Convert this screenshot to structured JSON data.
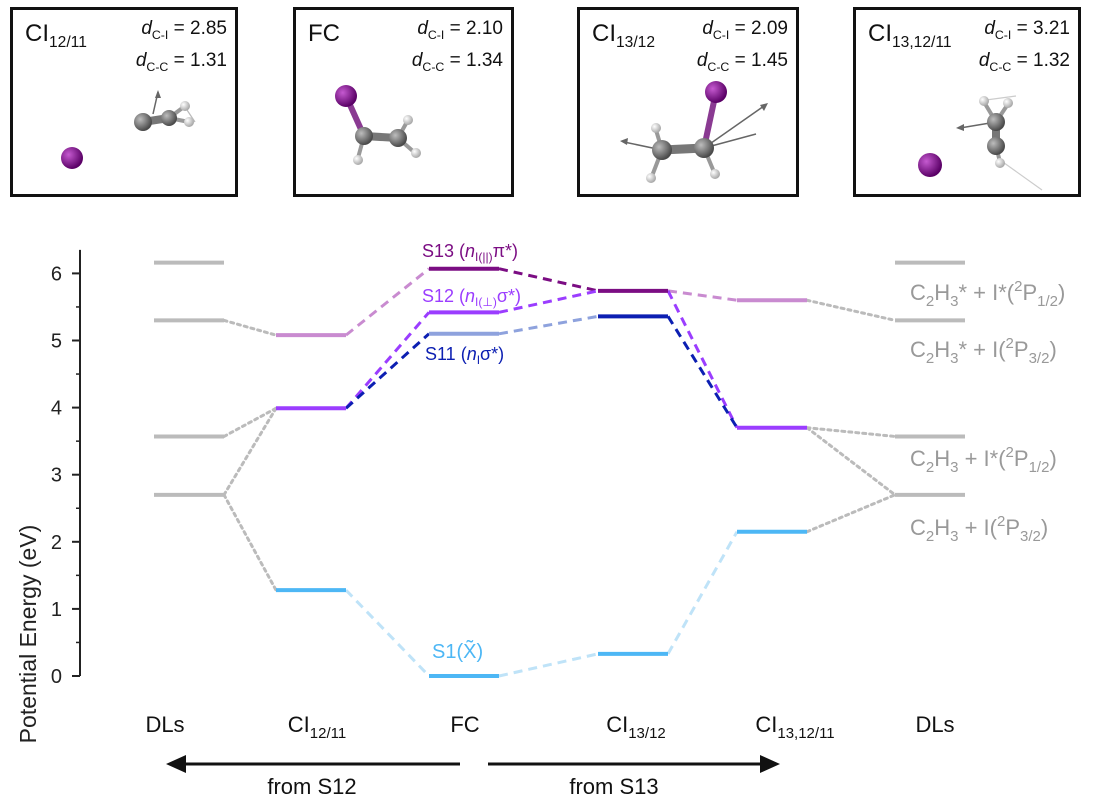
{
  "panels": [
    {
      "title": "CI",
      "sub": "12/11",
      "d_ci_label": "d",
      "d_ci_sub": "C-I",
      "d_ci": "= 2.85",
      "d_cc_label": "d",
      "d_cc_sub": "C-C",
      "d_cc": "= 1.31"
    },
    {
      "title": "FC",
      "sub": "",
      "d_ci_label": "d",
      "d_ci_sub": "C-I",
      "d_ci": "= 2.10",
      "d_cc_label": "d",
      "d_cc_sub": "C-C",
      "d_cc": "= 1.34"
    },
    {
      "title": "CI",
      "sub": "13/12",
      "d_ci_label": "d",
      "d_ci_sub": "C-I",
      "d_ci": "= 2.09",
      "d_cc_label": "d",
      "d_cc_sub": "C-C",
      "d_cc": "= 1.45"
    },
    {
      "title": "CI",
      "sub": "13,12/11",
      "d_ci_label": "d",
      "d_ci_sub": "C-I",
      "d_ci": "= 3.21",
      "d_cc_label": "d",
      "d_cc_sub": "C-C",
      "d_cc": "= 1.32"
    }
  ],
  "axis": {
    "ylabel": "Potential Energy (eV)",
    "ticks": [
      "0",
      "1",
      "2",
      "3",
      "4",
      "5",
      "6"
    ],
    "ylim": [
      0,
      6.4
    ]
  },
  "columns": [
    {
      "label": "DLs",
      "sub": ""
    },
    {
      "label": "CI",
      "sub": "12/11"
    },
    {
      "label": "FC",
      "sub": ""
    },
    {
      "label": "CI",
      "sub": "13/12"
    },
    {
      "label": "CI",
      "sub": "13,12/11"
    },
    {
      "label": "DLs",
      "sub": ""
    }
  ],
  "arrows": {
    "left_label": "from S12",
    "right_label": "from S13"
  },
  "state_labels": {
    "s13": {
      "name": "S13 (",
      "n": "n",
      "nsub": "I(||)",
      "rest": "π*)"
    },
    "s12": {
      "name": "S12 (",
      "n": "n",
      "nsub": "I(⊥)",
      "rest": "σ*)"
    },
    "s11": {
      "name": "S11 (",
      "n": "n",
      "nsub": "I",
      "rest": "σ*)"
    },
    "s1": {
      "name": "S1(",
      "x": "X̃",
      "rest": ")"
    }
  },
  "dissociation_labels": [
    {
      "pre": "C",
      "s1": "2",
      "mid": "H",
      "s2": "3",
      "mid2": "* + I*(",
      "sup": "2",
      "p": "P",
      "psub": "1/2",
      "end": ")"
    },
    {
      "pre": "C",
      "s1": "2",
      "mid": "H",
      "s2": "3",
      "mid2": "* + I(",
      "sup": "2",
      "p": "P",
      "psub": "3/2",
      "end": ")"
    },
    {
      "pre": "C",
      "s1": "2",
      "mid": "H",
      "s2": "3",
      "mid2": " + I*(",
      "sup": "2",
      "p": "P",
      "psub": "1/2",
      "end": ")"
    },
    {
      "pre": "C",
      "s1": "2",
      "mid": "H",
      "s2": "3",
      "mid2": " + I(",
      "sup": "2",
      "p": "P",
      "psub": "3/2",
      "end": ")"
    }
  ],
  "colors": {
    "s13": "#7b0d83",
    "s12": "#9b3dff",
    "s11": "#0c1fb2",
    "s1": "#4db7f5",
    "dl": "#bbbbbb",
    "s13_faint": "#c98bd0",
    "s11_faint": "#8ea2dd",
    "s1_faint": "#bfe3f8"
  },
  "chart_data": {
    "type": "energy-level diagram",
    "categories": [
      "DLs",
      "CI12/11",
      "FC",
      "CI13/12",
      "CI13,12/11",
      "DLs"
    ],
    "ylabel": "Potential Energy (eV)",
    "ylim": [
      0,
      6.4
    ],
    "levels": [
      {
        "col": 0,
        "e": 6.16,
        "state": "dl"
      },
      {
        "col": 0,
        "e": 5.3,
        "state": "dl"
      },
      {
        "col": 0,
        "e": 3.57,
        "state": "dl"
      },
      {
        "col": 0,
        "e": 2.7,
        "state": "dl"
      },
      {
        "col": 1,
        "e": 5.08,
        "state": "s13_faint"
      },
      {
        "col": 1,
        "e": 3.99,
        "state": "s12"
      },
      {
        "col": 1,
        "e": 1.28,
        "state": "s1"
      },
      {
        "col": 2,
        "e": 6.07,
        "state": "s13"
      },
      {
        "col": 2,
        "e": 5.42,
        "state": "s12"
      },
      {
        "col": 2,
        "e": 5.1,
        "state": "s11_faint"
      },
      {
        "col": 2,
        "e": 0.0,
        "state": "s1"
      },
      {
        "col": 3,
        "e": 5.74,
        "state": "s13"
      },
      {
        "col": 3,
        "e": 5.36,
        "state": "s11"
      },
      {
        "col": 3,
        "e": 0.33,
        "state": "s1"
      },
      {
        "col": 4,
        "e": 5.6,
        "state": "s13_faint"
      },
      {
        "col": 4,
        "e": 3.7,
        "state": "s12"
      },
      {
        "col": 4,
        "e": 2.15,
        "state": "s1"
      },
      {
        "col": 5,
        "e": 6.16,
        "state": "dl"
      },
      {
        "col": 5,
        "e": 5.3,
        "state": "dl"
      },
      {
        "col": 5,
        "e": 3.57,
        "state": "dl"
      },
      {
        "col": 5,
        "e": 2.7,
        "state": "dl"
      }
    ],
    "connections": [
      {
        "from": [
          0,
          5.3
        ],
        "to": [
          1,
          5.08
        ],
        "color": "dl",
        "style": "dotted"
      },
      {
        "from": [
          0,
          3.57
        ],
        "to": [
          1,
          3.99
        ],
        "color": "dl",
        "style": "dotted"
      },
      {
        "from": [
          0,
          2.7
        ],
        "to": [
          1,
          3.99
        ],
        "color": "dl",
        "style": "dotted"
      },
      {
        "from": [
          0,
          2.7
        ],
        "to": [
          1,
          1.28
        ],
        "color": "dl",
        "style": "dotted"
      },
      {
        "from": [
          1,
          5.08
        ],
        "to": [
          2,
          6.07
        ],
        "color": "s13_faint",
        "style": "dashed"
      },
      {
        "from": [
          1,
          3.99
        ],
        "to": [
          2,
          5.42
        ],
        "color": "s12",
        "style": "dashed"
      },
      {
        "from": [
          1,
          3.99
        ],
        "to": [
          2,
          5.1
        ],
        "color": "s11",
        "style": "dashed"
      },
      {
        "from": [
          1,
          1.28
        ],
        "to": [
          2,
          0.0
        ],
        "color": "s1_faint",
        "style": "dashed"
      },
      {
        "from": [
          2,
          6.07
        ],
        "to": [
          3,
          5.74
        ],
        "color": "s13",
        "style": "dashed"
      },
      {
        "from": [
          2,
          5.42
        ],
        "to": [
          3,
          5.74
        ],
        "color": "s12",
        "style": "dashed"
      },
      {
        "from": [
          2,
          5.1
        ],
        "to": [
          3,
          5.36
        ],
        "color": "s11_faint",
        "style": "dashed"
      },
      {
        "from": [
          2,
          0.0
        ],
        "to": [
          3,
          0.33
        ],
        "color": "s1_faint",
        "style": "dashed"
      },
      {
        "from": [
          3,
          5.74
        ],
        "to": [
          4,
          5.6
        ],
        "color": "s13_faint",
        "style": "dashed"
      },
      {
        "from": [
          3,
          5.74
        ],
        "to": [
          4,
          3.7
        ],
        "color": "s12",
        "style": "dashed"
      },
      {
        "from": [
          3,
          5.36
        ],
        "to": [
          4,
          3.7
        ],
        "color": "s11",
        "style": "dashed"
      },
      {
        "from": [
          3,
          0.33
        ],
        "to": [
          4,
          2.15
        ],
        "color": "s1_faint",
        "style": "dashed"
      },
      {
        "from": [
          4,
          5.6
        ],
        "to": [
          5,
          5.3
        ],
        "color": "dl",
        "style": "dotted"
      },
      {
        "from": [
          4,
          3.7
        ],
        "to": [
          5,
          3.57
        ],
        "color": "dl",
        "style": "dotted"
      },
      {
        "from": [
          4,
          3.7
        ],
        "to": [
          5,
          2.7
        ],
        "color": "dl",
        "style": "dotted"
      },
      {
        "from": [
          4,
          2.15
        ],
        "to": [
          5,
          2.7
        ],
        "color": "dl",
        "style": "dotted"
      }
    ]
  }
}
